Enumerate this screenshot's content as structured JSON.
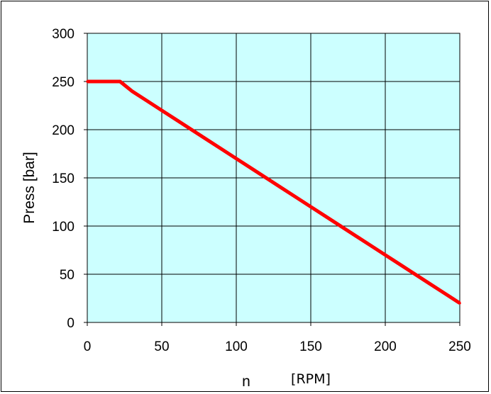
{
  "chart_data": {
    "type": "line",
    "title": "",
    "xlabel": "n",
    "xlabel_unit": "[RPM]",
    "ylabel": "Press [bar]",
    "xlim": [
      0,
      250
    ],
    "ylim": [
      0,
      300
    ],
    "x_ticks": [
      0,
      50,
      100,
      150,
      200,
      250
    ],
    "y_ticks": [
      0,
      50,
      100,
      150,
      200,
      250,
      300
    ],
    "x_tick_labels": [
      "0",
      "50",
      "100",
      "150",
      "200",
      "250"
    ],
    "y_tick_labels": [
      "0",
      "50",
      "100",
      "150",
      "200",
      "250",
      "300"
    ],
    "grid": true,
    "plot_background": "#ccffff",
    "series": [
      {
        "color": "#ff0000",
        "x": [
          0,
          10,
          20,
          22,
          30,
          40,
          50,
          60,
          70,
          80,
          90,
          100,
          110,
          120,
          130,
          140,
          150,
          160,
          170,
          180,
          190,
          200,
          210,
          220,
          230,
          240,
          250
        ],
        "y": [
          250,
          250,
          250,
          250,
          240,
          230,
          220,
          210,
          200,
          190,
          180,
          170,
          160,
          150,
          140,
          130,
          120,
          110,
          100,
          90,
          80,
          70,
          60,
          50,
          40,
          30,
          20
        ]
      }
    ]
  }
}
